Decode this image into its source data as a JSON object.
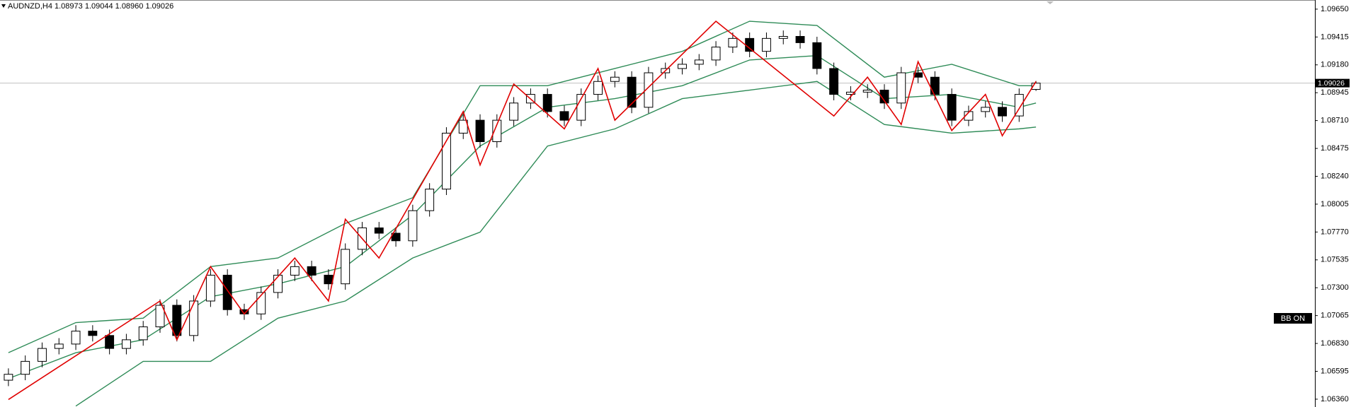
{
  "chart_data": {
    "type": "candlestick",
    "title": "AUDNZD,H4  1.08973 1.09044 1.08960 1.09026",
    "open": [
      1.0652,
      1.0657,
      1.06679,
      1.06788,
      1.06825,
      1.06934,
      1.06897,
      1.06788,
      1.06861,
      1.0697,
      1.07152,
      1.06897,
      1.07188,
      1.07406,
      1.07115,
      1.07079,
      1.0726,
      1.07406,
      1.07478,
      1.07406,
      1.07333,
      1.07624,
      1.07805,
      1.0776,
      1.07696,
      1.0795,
      1.08132,
      1.08604,
      1.08713,
      1.08532,
      1.08713,
      1.08858,
      1.08931,
      1.08786,
      1.08713,
      1.08931,
      1.0904,
      1.09076,
      1.08822,
      1.09113,
      1.09149,
      1.09185,
      1.09221,
      1.0933,
      1.09403,
      1.09294,
      1.09403,
      1.0942,
      1.09367,
      1.09149,
      1.08931,
      1.0895,
      1.08967,
      1.08858,
      1.09113,
      1.09076,
      1.08931,
      1.08713,
      1.08786,
      1.08822,
      1.08749,
      1.08973
    ],
    "high": [
      1.0662,
      1.06729,
      1.06838,
      1.06875,
      1.06984,
      1.06984,
      1.06947,
      1.06911,
      1.0702,
      1.07202,
      1.07202,
      1.07238,
      1.07456,
      1.07456,
      1.07165,
      1.0731,
      1.07456,
      1.07528,
      1.07528,
      1.07456,
      1.07674,
      1.07855,
      1.07855,
      1.0781,
      1.08,
      1.08182,
      1.08654,
      1.08763,
      1.08763,
      1.08763,
      1.08908,
      1.08981,
      1.08981,
      1.08836,
      1.08981,
      1.0909,
      1.09126,
      1.09126,
      1.09163,
      1.09199,
      1.09235,
      1.09271,
      1.0938,
      1.09453,
      1.09453,
      1.09453,
      1.0947,
      1.0947,
      1.09417,
      1.09199,
      1.09,
      1.09017,
      1.09017,
      1.09163,
      1.09163,
      1.09126,
      1.08981,
      1.08836,
      1.08872,
      1.08872,
      1.08981,
      1.09044
    ],
    "low": [
      1.0647,
      1.0652,
      1.06629,
      1.06738,
      1.06775,
      1.06847,
      1.06738,
      1.06738,
      1.06811,
      1.0692,
      1.06847,
      1.06847,
      1.07138,
      1.07065,
      1.07029,
      1.07029,
      1.0721,
      1.07356,
      1.07356,
      1.07283,
      1.07283,
      1.07574,
      1.0771,
      1.07646,
      1.07646,
      1.079,
      1.08082,
      1.08554,
      1.08482,
      1.08482,
      1.08663,
      1.08808,
      1.08736,
      1.08663,
      1.08663,
      1.08881,
      1.0899,
      1.08772,
      1.08772,
      1.09063,
      1.09099,
      1.09135,
      1.09171,
      1.0928,
      1.09244,
      1.09244,
      1.09353,
      1.09317,
      1.09099,
      1.08881,
      1.08881,
      1.089,
      1.08808,
      1.08808,
      1.09026,
      1.08881,
      1.08663,
      1.08663,
      1.08736,
      1.08699,
      1.08699,
      1.0896
    ],
    "close": [
      1.0657,
      1.06679,
      1.06788,
      1.06825,
      1.06934,
      1.06897,
      1.06788,
      1.06861,
      1.0697,
      1.07152,
      1.06897,
      1.07188,
      1.07406,
      1.07115,
      1.07079,
      1.0726,
      1.07406,
      1.07478,
      1.07406,
      1.07333,
      1.07624,
      1.07805,
      1.0776,
      1.07696,
      1.0795,
      1.08132,
      1.08604,
      1.08713,
      1.08532,
      1.08713,
      1.08858,
      1.08931,
      1.08786,
      1.08713,
      1.08931,
      1.0904,
      1.09076,
      1.08822,
      1.09113,
      1.09149,
      1.09185,
      1.09221,
      1.0933,
      1.09403,
      1.09294,
      1.09403,
      1.0942,
      1.09367,
      1.09149,
      1.08931,
      1.0895,
      1.08967,
      1.08858,
      1.09113,
      1.09076,
      1.08931,
      1.08713,
      1.08786,
      1.08822,
      1.08749,
      1.08931,
      1.09026
    ],
    "up_color": "#ffffff",
    "down_color": "#000000",
    "bands": {
      "color": "#2e8b57",
      "x": [
        0,
        4,
        8,
        12,
        16,
        20,
        24,
        28,
        32,
        36,
        40,
        44,
        48,
        52,
        56,
        60,
        61
      ],
      "upper": [
        1.06752,
        1.07006,
        1.07043,
        1.07478,
        1.07551,
        1.07842,
        1.08059,
        1.09004,
        1.09004,
        1.09149,
        1.09294,
        1.09548,
        1.09512,
        1.09076,
        1.09185,
        1.09004,
        1.09004
      ],
      "middle": [
        1.06534,
        1.06752,
        1.06861,
        1.07224,
        1.07333,
        1.07478,
        1.07914,
        1.08495,
        1.08822,
        1.08895,
        1.09004,
        1.09221,
        1.09258,
        1.08895,
        1.08931,
        1.08822,
        1.08858
      ],
      "lower": [
        null,
        1.06302,
        1.06679,
        1.06679,
        1.07043,
        1.07188,
        1.07551,
        1.07769,
        1.08495,
        1.0864,
        1.08895,
        1.08967,
        1.0904,
        1.08677,
        1.08604,
        1.0864,
        1.08655
      ]
    },
    "zigzag": {
      "color": "#e00000",
      "x": [
        0,
        9,
        10,
        12,
        14,
        17,
        19,
        20,
        22,
        27,
        28,
        30,
        33,
        35,
        36,
        42,
        49,
        51,
        53,
        54,
        56,
        58,
        59,
        61
      ],
      "values": [
        1.06357,
        1.07188,
        1.06861,
        1.07478,
        1.07079,
        1.07551,
        1.07188,
        1.07878,
        1.07551,
        1.08786,
        1.08335,
        1.09018,
        1.0864,
        1.09149,
        1.08713,
        1.09548,
        1.08749,
        1.09076,
        1.08677,
        1.09207,
        1.08626,
        1.08931,
        1.08582,
        1.0904
      ]
    },
    "current_price": 1.09026,
    "indicator_label": "BB ON",
    "ylim": [
      1.06294,
      1.09727
    ],
    "yticks": [
      {
        "value": 1.0965,
        "label": "1.09650"
      },
      1.09415,
      {
        "value": 1.0918,
        "label": "1.09180"
      },
      1.08945,
      {
        "value": 1.0871,
        "label": "1.08710"
      },
      1.08475,
      {
        "value": 1.0824,
        "label": "1.08240"
      },
      1.08005,
      {
        "value": 1.0777,
        "label": "1.07770"
      },
      1.07535,
      {
        "value": 1.073,
        "label": "1.07300"
      },
      1.07065,
      {
        "value": 1.0683,
        "label": "1.06830"
      },
      1.06595,
      {
        "value": 1.0636,
        "label": "1.06360"
      }
    ]
  }
}
